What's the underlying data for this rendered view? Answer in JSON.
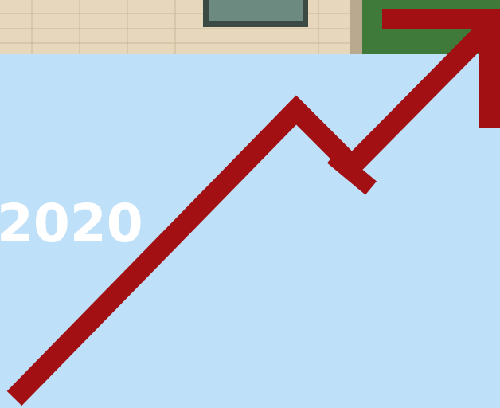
{
  "text": "2020"
}
